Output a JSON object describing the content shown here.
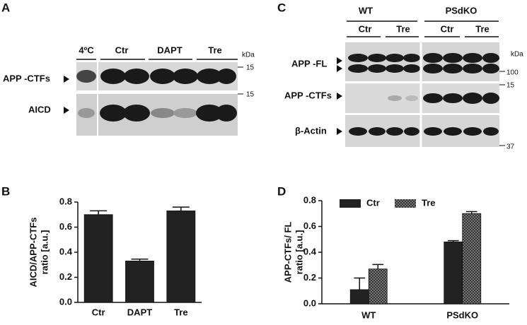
{
  "panels": {
    "a": "A",
    "b": "B",
    "c": "C",
    "d": "D"
  },
  "blot_a": {
    "lanes": [
      "4ºC",
      "Ctr",
      "DAPT",
      "Tre"
    ],
    "rows": [
      "APP -CTFs",
      "AICD"
    ],
    "unit": "kDa",
    "markers": [
      "15",
      "15"
    ]
  },
  "blot_c": {
    "groups": [
      "WT",
      "PSdKO"
    ],
    "lanes": [
      "Ctr",
      "Tre",
      "Ctr",
      "Tre"
    ],
    "rows": [
      "APP -FL",
      "APP -CTFs",
      "β-Actin"
    ],
    "unit": "kDa",
    "markers": [
      "100",
      "15",
      "37"
    ]
  },
  "chart_data": [
    {
      "type": "bar",
      "ylabel": [
        "AICD/APP-CTFs",
        "ratio [a.u.]"
      ],
      "categories": [
        "Ctr",
        "DAPT",
        "Tre"
      ],
      "series": [
        {
          "color": "#222222",
          "values": [
            0.7,
            0.33,
            0.73
          ],
          "errors": [
            0.03,
            0.015,
            0.03
          ]
        }
      ],
      "ylim": [
        0,
        0.8
      ],
      "yticks": [
        {
          "value": 0,
          "label": "0.0"
        },
        0.2,
        0.4,
        0.6,
        0.8
      ]
    },
    {
      "type": "bar",
      "ylabel": [
        "APP-CTFs/ FL",
        "ratio [a.u.]"
      ],
      "categories": [
        "WT",
        "PSdKO"
      ],
      "series": [
        {
          "name": "Ctr",
          "color": "#222222",
          "values": [
            0.11,
            0.48
          ],
          "errors": [
            0.09,
            0.01
          ]
        },
        {
          "name": "Tre",
          "color": "url(#checker)",
          "values": [
            0.27,
            0.7
          ],
          "errors": [
            0.035,
            0.015
          ]
        }
      ],
      "ylim": [
        0,
        0.8
      ],
      "yticks": [
        {
          "value": 0,
          "label": "0.0"
        },
        0.2,
        0.4,
        0.6,
        0.8
      ]
    }
  ]
}
